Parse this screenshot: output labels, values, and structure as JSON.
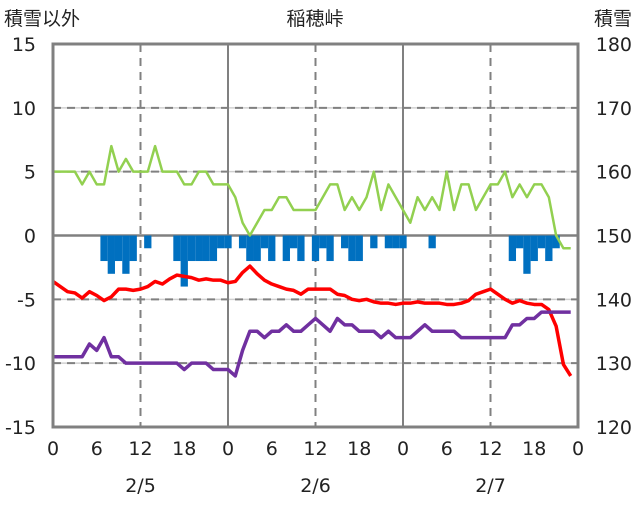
{
  "chart_data": {
    "type": "line",
    "title": "稲穂峠",
    "left_axis_label": "積雪以外",
    "right_axis_label": "積雪",
    "ylim_left": [
      -15,
      15
    ],
    "yticks_left": [
      "15",
      "10",
      "5",
      "0",
      "-5",
      "-10",
      "-15"
    ],
    "ylim_right": [
      120,
      180
    ],
    "yticks_right": [
      "180",
      "170",
      "160",
      "150",
      "140",
      "130",
      "120"
    ],
    "xlim_hours": [
      0,
      72
    ],
    "xtick_labels": [
      "0",
      "6",
      "12",
      "18",
      "0",
      "6",
      "12",
      "18",
      "0",
      "6",
      "12",
      "18",
      "0"
    ],
    "date_labels": [
      "2/5",
      "2/6",
      "2/7"
    ],
    "colors": {
      "green": "#92d050",
      "red": "#ff0000",
      "purple": "#7030a0",
      "bar": "#0070c0",
      "axis": "#808080"
    },
    "series": [
      {
        "key": "green",
        "axis": "left",
        "values": [
          5,
          5,
          5,
          5,
          4,
          5,
          4,
          4,
          7,
          5,
          6,
          5,
          5,
          5,
          7,
          5,
          5,
          5,
          4,
          4,
          5,
          5,
          4,
          4,
          4,
          3,
          1,
          0,
          1,
          2,
          2,
          3,
          3,
          2,
          2,
          2,
          2,
          3,
          4,
          4,
          2,
          3,
          2,
          3,
          5,
          2,
          4,
          3,
          2,
          1,
          3,
          2,
          3,
          2,
          5,
          2,
          4,
          4,
          2,
          3,
          4,
          4,
          5,
          3,
          4,
          3,
          4,
          4,
          3,
          0,
          -1,
          -1
        ]
      },
      {
        "key": "red",
        "axis": "left",
        "values": [
          -3.6,
          -4.0,
          -4.4,
          -4.5,
          -4.9,
          -4.4,
          -4.7,
          -5.1,
          -4.8,
          -4.2,
          -4.2,
          -4.3,
          -4.2,
          -4.0,
          -3.6,
          -3.8,
          -3.4,
          -3.1,
          -3.2,
          -3.3,
          -3.5,
          -3.4,
          -3.5,
          -3.5,
          -3.7,
          -3.6,
          -2.9,
          -2.4,
          -3.0,
          -3.5,
          -3.8,
          -4.0,
          -4.2,
          -4.3,
          -4.6,
          -4.2,
          -4.2,
          -4.2,
          -4.2,
          -4.6,
          -4.7,
          -5.0,
          -5.1,
          -5.0,
          -5.2,
          -5.3,
          -5.3,
          -5.4,
          -5.3,
          -5.3,
          -5.2,
          -5.3,
          -5.3,
          -5.3,
          -5.4,
          -5.4,
          -5.3,
          -5.1,
          -4.6,
          -4.4,
          -4.2,
          -4.6,
          -5.0,
          -5.3,
          -5.1,
          -5.3,
          -5.4,
          -5.4,
          -5.8,
          -7.1,
          -10.1,
          -11.0
        ]
      },
      {
        "key": "purple",
        "axis": "right",
        "values": [
          131,
          131,
          131,
          131,
          131,
          133,
          132,
          134,
          131,
          131,
          130,
          130,
          130,
          130,
          130,
          130,
          130,
          130,
          129,
          130,
          130,
          130,
          129,
          129,
          129,
          128,
          132,
          135,
          135,
          134,
          135,
          135,
          136,
          135,
          135,
          136,
          137,
          136,
          135,
          137,
          136,
          136,
          135,
          135,
          135,
          134,
          135,
          134,
          134,
          134,
          135,
          136,
          135,
          135,
          135,
          135,
          134,
          134,
          134,
          134,
          134,
          134,
          134,
          136,
          136,
          137,
          137,
          138,
          138,
          138,
          138,
          138
        ]
      },
      {
        "key": "bar",
        "axis": "left",
        "type": "bar",
        "values": [
          0,
          0,
          0,
          0,
          0,
          0,
          0,
          -2,
          -3,
          -2,
          -3,
          -2,
          0,
          -1,
          0,
          0,
          0,
          -2,
          -4,
          -2,
          -2,
          -2,
          -2,
          -1,
          -1,
          0,
          -1,
          -2,
          -2,
          -1,
          -2,
          0,
          -2,
          -1,
          -2,
          0,
          -2,
          -1,
          -2,
          0,
          -1,
          -2,
          -2,
          0,
          -1,
          0,
          -1,
          -1,
          -1,
          0,
          0,
          0,
          -1,
          0,
          0,
          0,
          0,
          0,
          0,
          0,
          0,
          0,
          0,
          -2,
          -1,
          -3,
          -2,
          -1,
          -2,
          -1,
          0,
          0
        ]
      }
    ]
  }
}
